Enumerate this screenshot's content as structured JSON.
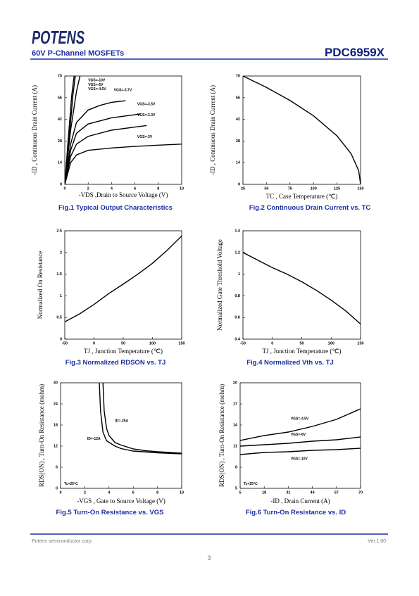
{
  "header": {
    "logo": "POTENS",
    "subtitle": "60V P-Channel MOSFETs",
    "part": "PDC6959X"
  },
  "footer": {
    "company": "Potens semiconductor corp.",
    "version": "Ver.1.00",
    "page": "3"
  },
  "chart_data": [
    {
      "type": "line",
      "title": "Fig.1   Typical Output Characteristics",
      "x_label": "-VDS ,Drain to Source Voltage (V)",
      "y_label": "-ID , Continuous Drain Current (A)",
      "xlim": [
        0,
        10
      ],
      "xticks": [
        0,
        2,
        4,
        6,
        8,
        10
      ],
      "ylim": [
        0,
        70
      ],
      "yticks": [
        0,
        14,
        28,
        42,
        56,
        70
      ],
      "series": [
        {
          "name": "VGS=-10V",
          "color": "#000000",
          "x": [
            0,
            0.3,
            0.6,
            0.8
          ],
          "values": [
            0,
            30,
            58,
            70
          ]
        },
        {
          "name": "VGS=-6V",
          "color": "#000000",
          "x": [
            0,
            0.4,
            0.7,
            0.9
          ],
          "values": [
            0,
            32,
            58,
            70
          ]
        },
        {
          "name": "VGS=-4.5V",
          "color": "#000000",
          "x": [
            0,
            0.5,
            1,
            1.3
          ],
          "values": [
            0,
            35,
            60,
            70
          ]
        },
        {
          "name": "VGS=-3.7V",
          "color": "#000000",
          "x": [
            0,
            0.5,
            1,
            2,
            3,
            4,
            5.2
          ],
          "values": [
            0,
            26,
            40,
            48,
            51,
            53,
            54
          ]
        },
        {
          "name": "VGS=-3.5V",
          "color": "#000000",
          "x": [
            0,
            0.5,
            1,
            2,
            4,
            6.5
          ],
          "values": [
            0,
            22,
            33,
            39,
            43,
            45.5
          ]
        },
        {
          "name": "VGS=-3.3V",
          "color": "#000000",
          "x": [
            0,
            0.5,
            1,
            2,
            4,
            6,
            7
          ],
          "values": [
            0,
            18,
            26,
            31,
            35,
            37,
            38
          ]
        },
        {
          "name": "VGS=-3V",
          "color": "#000000",
          "x": [
            0,
            0.5,
            1,
            2,
            4,
            6,
            8,
            10
          ],
          "values": [
            0,
            14,
            19,
            22,
            23.5,
            24.5,
            25.3,
            26
          ]
        }
      ]
    },
    {
      "type": "line",
      "title": "Fig.2   Continuous Drain Current vs. TC",
      "x_label": "TC , Case Temperature (℃)",
      "y_label": "-ID , Continuous Drain Current (A)",
      "xlim": [
        25,
        150
      ],
      "xticks": [
        25,
        50,
        75,
        100,
        125,
        150
      ],
      "ylim": [
        0,
        70
      ],
      "yticks": [
        0,
        14,
        28,
        42,
        56,
        70
      ],
      "series": [
        {
          "color": "#000000",
          "x": [
            25,
            50,
            75,
            100,
            125,
            140,
            148,
            150
          ],
          "values": [
            70,
            62.6,
            54.2,
            44.3,
            31.3,
            19.8,
            8.9,
            0
          ]
        }
      ]
    },
    {
      "type": "line",
      "title": "Fig.3   Normalized RDSON vs. TJ",
      "x_label": "TJ , Junction Temperature (℃)",
      "y_label": "Normalized On Resistance",
      "xlim": [
        -50,
        150
      ],
      "xticks": [
        -50,
        0,
        50,
        100,
        150
      ],
      "ylim": [
        0,
        2.5
      ],
      "yticks": [
        0,
        0.5,
        1,
        1.5,
        2,
        2.5
      ],
      "series": [
        {
          "color": "#000000",
          "x": [
            -50,
            -25,
            0,
            25,
            50,
            75,
            100,
            125,
            150
          ],
          "values": [
            0.4,
            0.58,
            0.8,
            1.05,
            1.27,
            1.5,
            1.75,
            2.05,
            2.38
          ]
        }
      ]
    },
    {
      "type": "line",
      "title": "Fig.4   Normalized Vth vs. TJ",
      "x_label": "TJ , Junction Temperature (℃)",
      "y_label": "Normalized Gate Threshold Voltage",
      "xlim": [
        -50,
        150
      ],
      "xticks": [
        -50,
        0,
        50,
        100,
        150
      ],
      "ylim": [
        0.4,
        1.4
      ],
      "yticks": [
        0.4,
        0.6,
        0.8,
        1,
        1.2,
        1.4
      ],
      "series": [
        {
          "color": "#000000",
          "x": [
            -50,
            -25,
            0,
            25,
            50,
            75,
            100,
            125,
            150
          ],
          "values": [
            1.2,
            1.13,
            1.06,
            1.0,
            0.93,
            0.85,
            0.76,
            0.66,
            0.54
          ]
        }
      ]
    },
    {
      "type": "line",
      "title": "Fig.5   Turn-On Resistance vs. VGS",
      "x_label": "-VGS , Gate to Source Voltage (V)",
      "y_label": "RDS(ON) , Turn-On Resistance (mohm)",
      "annotation": "Tc=25℃",
      "xlim": [
        0,
        10
      ],
      "xticks": [
        0,
        2,
        4,
        6,
        8,
        10
      ],
      "ylim": [
        0,
        30
      ],
      "yticks": [
        0,
        6,
        12,
        18,
        24,
        30
      ],
      "series": [
        {
          "name": "ID=-25A",
          "color": "#000000",
          "x": [
            3.5,
            3.6,
            3.8,
            4,
            4.5,
            5,
            6,
            7,
            8,
            9,
            10
          ],
          "values": [
            30,
            22,
            17,
            15,
            13,
            12.3,
            11.2,
            10.7,
            10.4,
            10.2,
            10
          ]
        },
        {
          "name": "ID=-12A",
          "color": "#000000",
          "x": [
            3.2,
            3.3,
            3.5,
            3.8,
            4.5,
            5,
            6,
            8,
            10
          ],
          "values": [
            30,
            22,
            16,
            13.5,
            12,
            11.3,
            10.6,
            10.1,
            9.8
          ]
        }
      ]
    },
    {
      "type": "line",
      "title": "Fig.6   Turn-On Resistance vs. ID",
      "x_label": "-ID , Drain Current (A)",
      "y_label": "RDS(ON) , Turn-On Resistance (mohm)",
      "annotation": "Tc=25℃",
      "xlim": [
        5,
        70
      ],
      "xticks": [
        5,
        18,
        31,
        44,
        57,
        70
      ],
      "ylim": [
        5,
        20
      ],
      "yticks": [
        5,
        8,
        11,
        14,
        17,
        20
      ],
      "series": [
        {
          "name": "VGS=-4.5V",
          "color": "#000000",
          "x": [
            5,
            18,
            31,
            44,
            57,
            70
          ],
          "values": [
            11.8,
            12.5,
            13,
            13.8,
            14.8,
            16.3
          ]
        },
        {
          "name": "VGS=-6V",
          "color": "#000000",
          "x": [
            5,
            18,
            31,
            44,
            57,
            70
          ],
          "values": [
            11,
            11.2,
            11.4,
            11.7,
            11.9,
            12.3
          ]
        },
        {
          "name": "VGS=-10V",
          "color": "#000000",
          "x": [
            5,
            18,
            31,
            44,
            57,
            70
          ],
          "values": [
            9.8,
            10.1,
            10.2,
            10.4,
            10.5,
            10.7
          ]
        }
      ]
    }
  ]
}
